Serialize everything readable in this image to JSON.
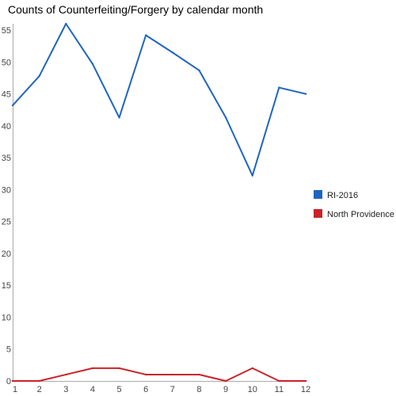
{
  "chart_data": {
    "type": "line",
    "title": "Counts of Counterfeiting/Forgery by calendar month",
    "x": [
      1,
      2,
      3,
      4,
      5,
      6,
      7,
      8,
      9,
      10,
      11,
      12
    ],
    "xlim": [
      1,
      12
    ],
    "ylim": [
      0,
      56
    ],
    "yticks": [
      0,
      5,
      10,
      15,
      20,
      25,
      30,
      35,
      40,
      45,
      50,
      55
    ],
    "grid": false,
    "legend_position": "right",
    "series": [
      {
        "name": "RI-2016",
        "color": "#1f64c1",
        "values": [
          43.2,
          47.8,
          56.0,
          49.7,
          41.3,
          54.2,
          51.5,
          48.7,
          41.3,
          32.2,
          46.0,
          45.0
        ]
      },
      {
        "name": "North Providence",
        "color": "#c9232b",
        "values": [
          0,
          0,
          1,
          2,
          2,
          1,
          1,
          1,
          0,
          2,
          0,
          0
        ]
      }
    ]
  }
}
